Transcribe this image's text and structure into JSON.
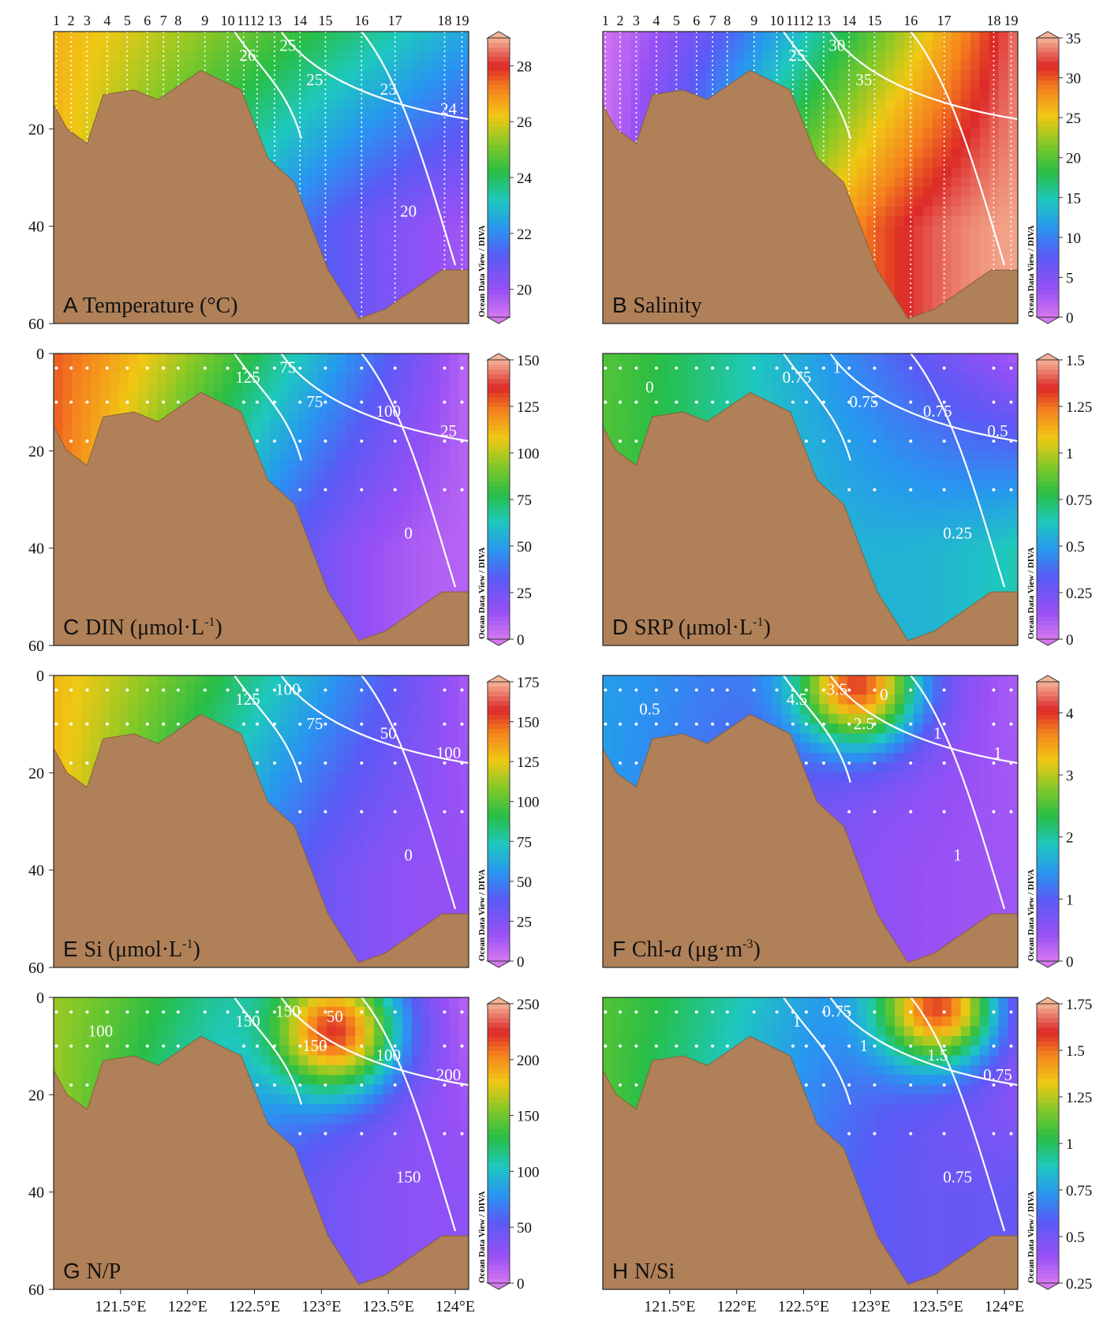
{
  "figure": {
    "credit": "Ocean Data View / DIVA",
    "x_tick_labels": [
      "121.5°E",
      "122°E",
      "122.5°E",
      "123°E",
      "123.5°E",
      "124°E"
    ],
    "stations": [
      "1",
      "2",
      "3",
      "4",
      "5",
      "6",
      "7",
      "8",
      "9",
      "10",
      "11",
      "12",
      "13",
      "14",
      "15",
      "16",
      "17",
      "18",
      "19"
    ],
    "colors": {
      "seabed": "#b08058",
      "seabed_edge": "#8a6038",
      "contour": "#ffffff",
      "sample_dot": "#ffffff"
    }
  },
  "chart_data": [
    {
      "id": "A",
      "type": "heatmap",
      "letter": "A",
      "title": "Temperature (°C)",
      "show_stations": true,
      "xlabel": "",
      "ylabel": "",
      "xlim": [
        121.0,
        124.1
      ],
      "ylim": [
        60,
        0
      ],
      "y_ticks": [
        "20",
        "40",
        "60"
      ],
      "colorbar": {
        "min": 19,
        "max": 29,
        "ticks": [
          "20",
          "22",
          "24",
          "26",
          "28"
        ]
      },
      "field": {
        "left": 26.5,
        "right": 22.5,
        "deep": 19.8,
        "core_x": 123.3,
        "core_depth": 45
      },
      "contour_labels": [
        "26",
        "25",
        "25",
        "23",
        "24",
        "20"
      ]
    },
    {
      "id": "B",
      "type": "heatmap",
      "letter": "B",
      "title": "Salinity",
      "show_stations": true,
      "xlabel": "",
      "ylabel": "",
      "xlim": [
        121.0,
        124.1
      ],
      "ylim": [
        60,
        0
      ],
      "y_ticks": [],
      "colorbar": {
        "min": 0,
        "max": 35,
        "ticks": [
          "0",
          "5",
          "10",
          "15",
          "20",
          "25",
          "30",
          "35"
        ]
      },
      "field": {
        "left": 0.5,
        "right": 33.5,
        "deep": 34.6,
        "core_x": 123.5,
        "core_depth": 40
      },
      "contour_labels": [
        "25",
        "30",
        "35"
      ]
    },
    {
      "id": "C",
      "type": "heatmap",
      "letter": "C",
      "title": "DIN (μmol·L",
      "title_sup": "-1",
      "title_end": ")",
      "xlabel": "",
      "ylabel": "",
      "xlim": [
        121.0,
        124.1
      ],
      "ylim": [
        60,
        0
      ],
      "y_ticks": [
        "0",
        "20",
        "40",
        "60"
      ],
      "colorbar": {
        "min": 0,
        "max": 150,
        "ticks": [
          "0",
          "25",
          "50",
          "75",
          "100",
          "125",
          "150"
        ]
      },
      "field": {
        "left": 128,
        "right": 6,
        "deep": 8,
        "core_x": 121.8,
        "core_depth": 8
      },
      "contour_labels": [
        "125",
        "75",
        "75",
        "100",
        "25",
        "0"
      ]
    },
    {
      "id": "D",
      "type": "heatmap",
      "letter": "D",
      "title": "SRP (μmol·L",
      "title_sup": "-1",
      "title_end": ")",
      "xlabel": "",
      "ylabel": "",
      "xlim": [
        121.0,
        124.1
      ],
      "ylim": [
        60,
        0
      ],
      "y_ticks": [],
      "colorbar": {
        "min": 0,
        "max": 1.5,
        "ticks": [
          "0",
          "0.25",
          "0.5",
          "0.75",
          "1",
          "1.25",
          "1.5"
        ]
      },
      "field": {
        "left": 0.85,
        "right": 0.1,
        "deep": 0.65,
        "core_x": 123.5,
        "core_depth": 48
      },
      "contour_labels": [
        "0.75",
        "1",
        "0.75",
        "0.75",
        "0.5",
        "0.25",
        "0"
      ]
    },
    {
      "id": "E",
      "type": "heatmap",
      "letter": "E",
      "title": "Si (μmol·L",
      "title_sup": "-1",
      "title_end": ")",
      "xlabel": "",
      "ylabel": "",
      "xlim": [
        121.0,
        124.1
      ],
      "ylim": [
        60,
        0
      ],
      "y_ticks": [
        "0",
        "20",
        "40",
        "60"
      ],
      "colorbar": {
        "min": 0,
        "max": 175,
        "ticks": [
          "0",
          "25",
          "50",
          "75",
          "100",
          "125",
          "150",
          "175"
        ]
      },
      "field": {
        "left": 130,
        "right": 12,
        "deep": 18,
        "core_x": 121.5,
        "core_depth": 8
      },
      "contour_labels": [
        "125",
        "100",
        "75",
        "50",
        "100",
        "0"
      ]
    },
    {
      "id": "F",
      "type": "heatmap",
      "letter": "F",
      "title": "Chl-",
      "title_italic": "a",
      "title_end": " (μg·m",
      "title_sup": "-3",
      "title_end2": ")",
      "xlabel": "",
      "ylabel": "",
      "xlim": [
        121.0,
        124.1
      ],
      "ylim": [
        60,
        0
      ],
      "y_ticks": [],
      "colorbar": {
        "min": 0,
        "max": 4.5,
        "ticks": [
          "0",
          "1",
          "2",
          "3",
          "4"
        ]
      },
      "field": {
        "left": 1.5,
        "right": 0.3,
        "deep": 0.4,
        "core_x": 122.9,
        "core_depth": 2
      },
      "contour_labels": [
        "4.5",
        "3.5",
        "2.5",
        "1",
        "1",
        "1",
        "0.5",
        "0"
      ]
    },
    {
      "id": "G",
      "type": "heatmap",
      "letter": "G",
      "title": "N/P",
      "xlabel": "",
      "ylabel": "",
      "xlim": [
        121.0,
        124.1
      ],
      "ylim": [
        60,
        0
      ],
      "y_ticks": [
        "0",
        "20",
        "40",
        "60"
      ],
      "colorbar": {
        "min": 0,
        "max": 250,
        "ticks": [
          "0",
          "50",
          "100",
          "150",
          "200",
          "250"
        ]
      },
      "field": {
        "left": 160,
        "right": 10,
        "deep": 30,
        "core_x": 123.1,
        "core_depth": 7
      },
      "contour_labels": [
        "150",
        "150",
        "150",
        "100",
        "200",
        "150",
        "100",
        "50"
      ]
    },
    {
      "id": "H",
      "type": "heatmap",
      "letter": "H",
      "title": "N/Si",
      "xlabel": "",
      "ylabel": "",
      "xlim": [
        121.0,
        124.1
      ],
      "ylim": [
        60,
        0
      ],
      "y_ticks": [],
      "colorbar": {
        "min": 0.25,
        "max": 1.75,
        "ticks": [
          "0.25",
          "0.5",
          "0.75",
          "1",
          "1.25",
          "1.5",
          "1.75"
        ]
      },
      "field": {
        "left": 1.1,
        "right": 0.3,
        "deep": 0.55,
        "core_x": 123.5,
        "core_depth": 2
      },
      "contour_labels": [
        "1",
        "0.75",
        "1",
        "1.5",
        "0.75",
        "0.75"
      ]
    }
  ]
}
